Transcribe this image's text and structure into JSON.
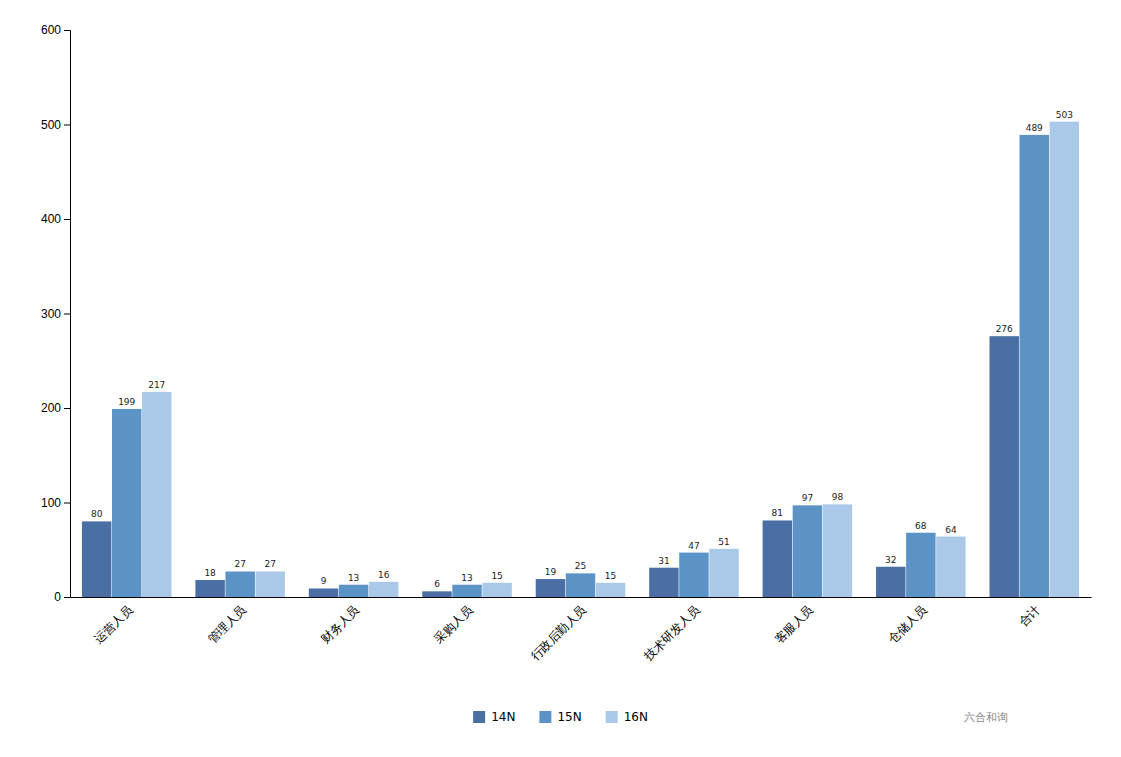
{
  "chart_data": {
    "type": "bar",
    "categories": [
      "运营人员",
      "管理人员",
      "财务人员",
      "采购人员",
      "行政后勤人员",
      "技术研发人员",
      "客服人员",
      "仓储人员",
      "合计"
    ],
    "series": [
      {
        "name": "14N",
        "color": "#4a6fa5",
        "values": [
          80,
          18,
          9,
          6,
          19,
          31,
          81,
          32,
          276
        ]
      },
      {
        "name": "15N",
        "color": "#5b93c7",
        "values": [
          199,
          27,
          13,
          13,
          25,
          47,
          97,
          68,
          489
        ]
      },
      {
        "name": "16N",
        "color": "#aac9e8",
        "values": [
          217,
          27,
          16,
          15,
          15,
          51,
          98,
          64,
          503
        ]
      }
    ],
    "ylim": [
      0,
      600
    ],
    "yticks": [
      0,
      100,
      200,
      300,
      400,
      500,
      600
    ],
    "grid": false,
    "legend": "bottom",
    "data_labels": true,
    "annotation": "六合和询"
  }
}
